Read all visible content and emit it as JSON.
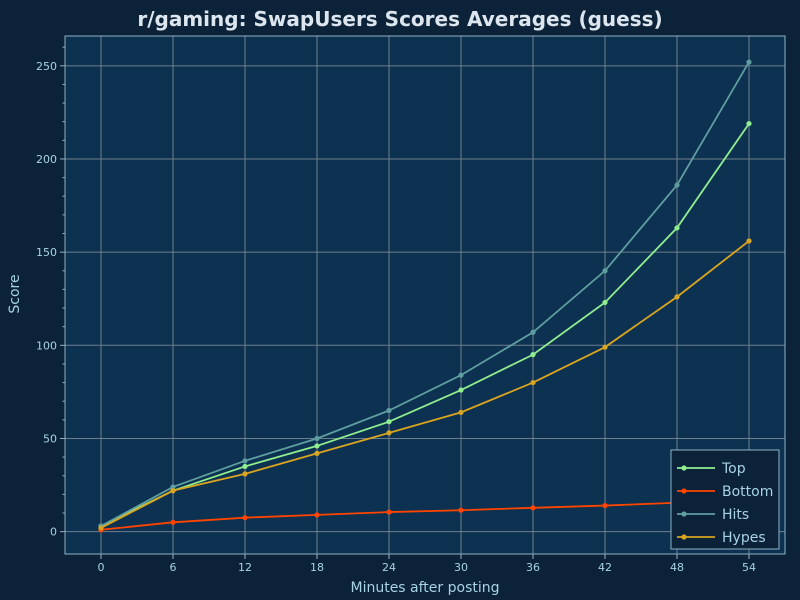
{
  "chart_data": {
    "type": "line",
    "title": "r/gaming: SwapUsers Scores Averages (guess)",
    "xlabel": "Minutes after posting",
    "ylabel": "Score",
    "x": [
      0,
      6,
      12,
      18,
      24,
      30,
      36,
      42,
      48,
      54
    ],
    "xticks": [
      0,
      6,
      12,
      18,
      24,
      30,
      36,
      42,
      48,
      54
    ],
    "yticks": [
      0,
      50,
      100,
      150,
      200,
      250
    ],
    "xlim": [
      -3,
      57
    ],
    "ylim": [
      -12,
      266
    ],
    "grid": true,
    "legend_position": "bottom-right",
    "series": [
      {
        "name": "Top",
        "color": "#90ee90",
        "values": [
          3,
          22,
          35,
          46,
          59,
          76,
          95,
          123,
          163,
          219
        ]
      },
      {
        "name": "Bottom",
        "color": "#ff4500",
        "values": [
          1,
          5,
          7.5,
          9,
          10.5,
          11.5,
          12.8,
          14,
          15.5,
          17
        ]
      },
      {
        "name": "Hits",
        "color": "#5f9ea0",
        "values": [
          3,
          24,
          38,
          50,
          65,
          84,
          107,
          140,
          186,
          252
        ]
      },
      {
        "name": "Hypes",
        "color": "#daa520",
        "values": [
          2,
          22,
          31,
          42,
          53,
          64,
          80,
          99,
          126,
          156
        ]
      }
    ],
    "colors": {
      "background": "#0b2239",
      "plot_background": "#0d3150",
      "grid": "#6e7f8c",
      "frame": "#8fb3c4",
      "text": "#a8d3e4",
      "title": "#dde6ee",
      "legend_background": "#0b2239"
    }
  }
}
